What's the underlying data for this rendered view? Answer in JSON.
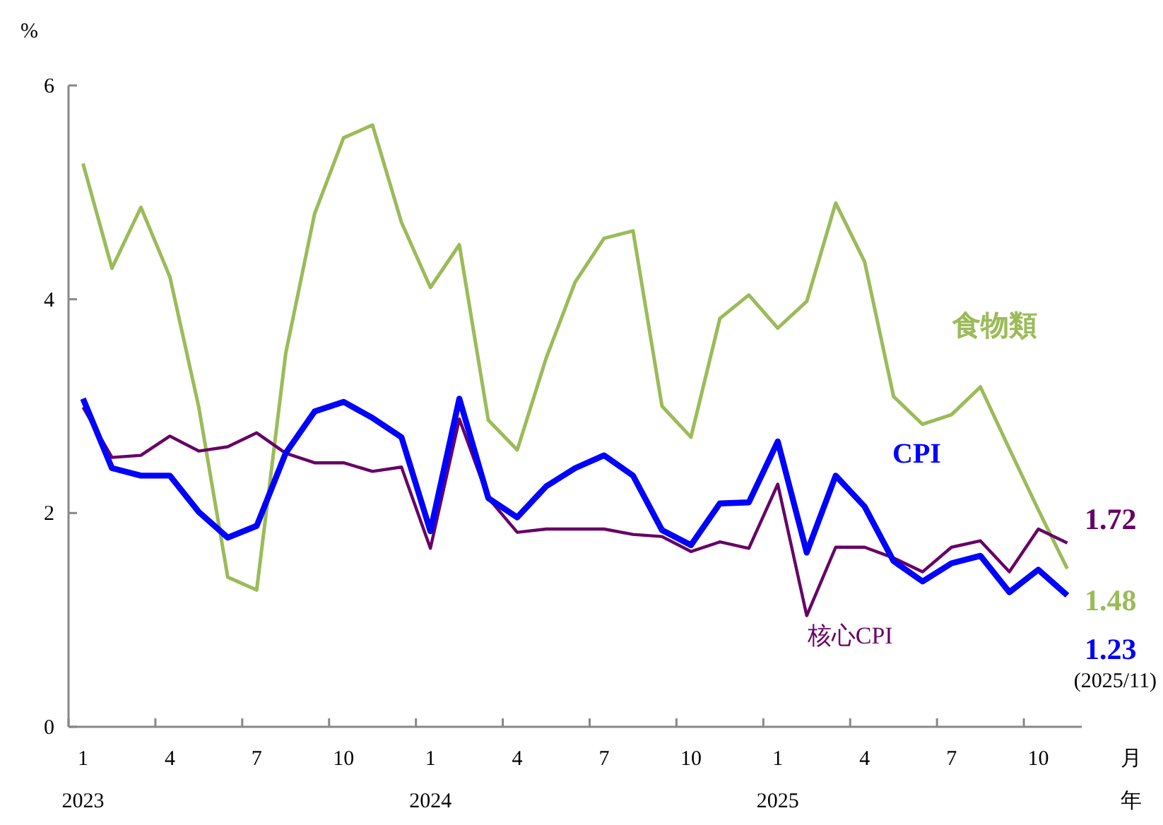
{
  "chart_data": {
    "type": "line",
    "categories": [
      "1\n2023",
      null,
      null,
      "4",
      null,
      null,
      "7",
      null,
      null,
      "10",
      null,
      null,
      "1\n2024",
      null,
      null,
      "4",
      null,
      null,
      "7",
      null,
      null,
      "10",
      null,
      null,
      "1\n2025",
      null,
      null,
      "4",
      null,
      null,
      "7",
      null,
      null,
      "10",
      null
    ],
    "series": [
      {
        "name": "食物類",
        "color": "#9bbb59",
        "values": [
          5.27,
          4.29,
          4.86,
          4.21,
          2.99,
          1.4,
          1.28,
          3.49,
          4.8,
          5.51,
          5.63,
          4.72,
          4.11,
          4.51,
          2.87,
          2.59,
          3.45,
          4.16,
          4.57,
          4.64,
          3.0,
          2.71,
          3.82,
          4.04,
          3.73,
          3.98,
          4.9,
          4.35,
          3.09,
          2.83,
          2.92,
          3.18,
          2.6,
          2.03,
          1.48
        ],
        "value_labels": [
          null,
          null,
          null,
          null,
          null,
          null,
          null,
          null,
          null,
          null,
          null,
          null,
          null,
          null,
          null,
          null,
          null,
          null,
          null,
          null,
          null,
          null,
          null,
          null,
          null,
          null,
          null,
          null,
          null,
          null,
          null,
          null,
          null,
          null,
          "1.48"
        ]
      },
      {
        "name": "核心CPI",
        "color": "#660066",
        "values": [
          2.99,
          2.52,
          2.54,
          2.72,
          2.58,
          2.62,
          2.75,
          2.56,
          2.47,
          2.47,
          2.39,
          2.43,
          1.67,
          2.88,
          2.14,
          1.82,
          1.85,
          1.85,
          1.85,
          1.8,
          1.78,
          1.64,
          1.73,
          1.67,
          2.27,
          1.04,
          1.68,
          1.68,
          1.58,
          1.45,
          1.68,
          1.74,
          1.45,
          1.85,
          1.72
        ],
        "value_labels": [
          null,
          null,
          null,
          null,
          null,
          null,
          null,
          null,
          null,
          null,
          null,
          null,
          null,
          null,
          null,
          null,
          null,
          null,
          null,
          null,
          null,
          null,
          null,
          null,
          null,
          null,
          null,
          null,
          null,
          null,
          null,
          null,
          null,
          null,
          "1.72"
        ]
      },
      {
        "name": "CPI",
        "color": "#0000ff",
        "values": [
          3.07,
          2.42,
          2.35,
          2.35,
          2.01,
          1.77,
          1.88,
          2.56,
          2.95,
          3.04,
          2.89,
          2.71,
          1.83,
          3.07,
          2.14,
          1.96,
          2.25,
          2.42,
          2.54,
          2.35,
          1.84,
          1.7,
          2.09,
          2.1,
          2.67,
          1.63,
          2.35,
          2.06,
          1.55,
          1.36,
          1.53,
          1.6,
          1.26,
          1.47,
          1.23
        ],
        "value_labels": [
          null,
          null,
          null,
          null,
          null,
          null,
          null,
          null,
          null,
          null,
          null,
          null,
          null,
          null,
          null,
          null,
          null,
          null,
          null,
          null,
          null,
          null,
          null,
          null,
          null,
          null,
          null,
          null,
          null,
          null,
          null,
          null,
          null,
          null,
          "1.23"
        ]
      }
    ],
    "ylabel": "%",
    "xlabel": "月年",
    "ylim": [
      0,
      6
    ],
    "yticks": [
      0,
      2,
      4,
      6
    ],
    "grid": false,
    "legend": false,
    "annotations": [
      "(2025/11)"
    ]
  }
}
